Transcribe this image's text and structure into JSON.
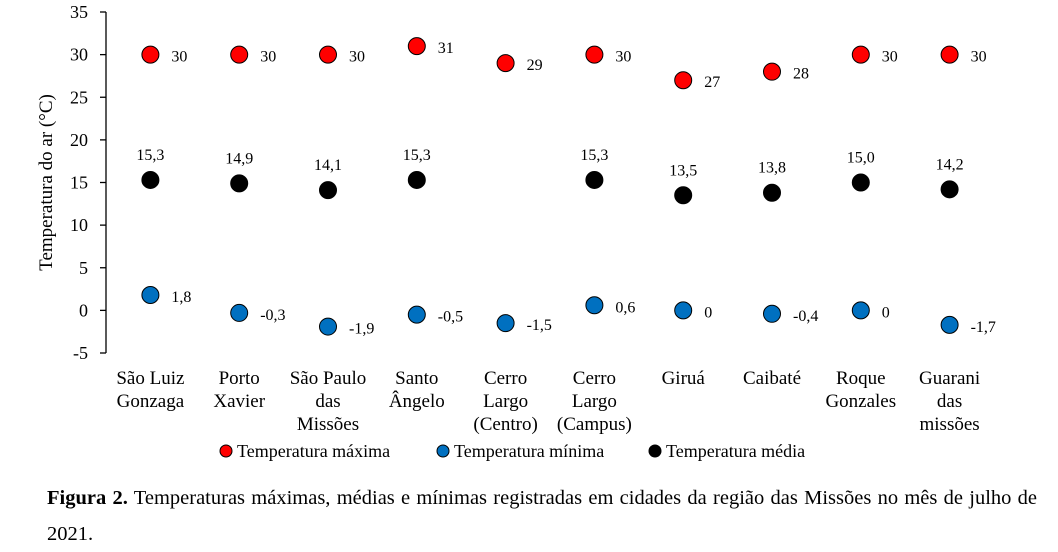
{
  "chart_data": {
    "type": "scatter",
    "ylabel": "Temperatura do ar (°C)",
    "ylim": [
      -5,
      35
    ],
    "yticks": [
      -5,
      0,
      5,
      10,
      15,
      20,
      25,
      30,
      35
    ],
    "grid": false,
    "legend_position": "bottom",
    "categories": [
      [
        "São Luiz",
        "Gonzaga"
      ],
      [
        "Porto",
        "Xavier"
      ],
      [
        "São Paulo",
        "das",
        "Missões"
      ],
      [
        "Santo",
        "Ângelo"
      ],
      [
        "Cerro",
        "Largo",
        "(Centro)"
      ],
      [
        "Cerro",
        "Largo",
        "(Campus)"
      ],
      [
        "Giruá"
      ],
      [
        "Caibaté"
      ],
      [
        "Roque",
        "Gonzales"
      ],
      [
        "Guarani",
        "das",
        "missões"
      ]
    ],
    "series": [
      {
        "name": "Temperatura máxima",
        "color": "#ff0000",
        "label_side": "right",
        "values": [
          30,
          30,
          30,
          31,
          29,
          30,
          27,
          28,
          30,
          30
        ],
        "labels": [
          "30",
          "30",
          "30",
          "31",
          "29",
          "30",
          "27",
          "28",
          "30",
          "30"
        ]
      },
      {
        "name": "Temperatura mínima",
        "color": "#0070c0",
        "label_side": "right",
        "values": [
          1.8,
          -0.3,
          -1.9,
          -0.5,
          -1.5,
          0.6,
          0,
          -0.4,
          0,
          -1.7
        ],
        "labels": [
          "1,8",
          "-0,3",
          "-1,9",
          "-0,5",
          "-1,5",
          "0,6",
          "0",
          "-0,4",
          "0",
          "-1,7"
        ]
      },
      {
        "name": "Temperatura média",
        "color": "#000000",
        "label_side": "above",
        "values": [
          15.3,
          14.9,
          14.1,
          15.3,
          null,
          15.3,
          13.5,
          13.8,
          15.0,
          14.2
        ],
        "labels": [
          "15,3",
          "14,9",
          "14,1",
          "15,3",
          null,
          "15,3",
          "13,5",
          "13,8",
          "15,0",
          "14,2"
        ]
      }
    ]
  },
  "caption": {
    "bold": "Figura 2.",
    "text": " Temperaturas máximas, médias e mínimas registradas em cidades da região das Missões no mês de julho de 2021."
  }
}
